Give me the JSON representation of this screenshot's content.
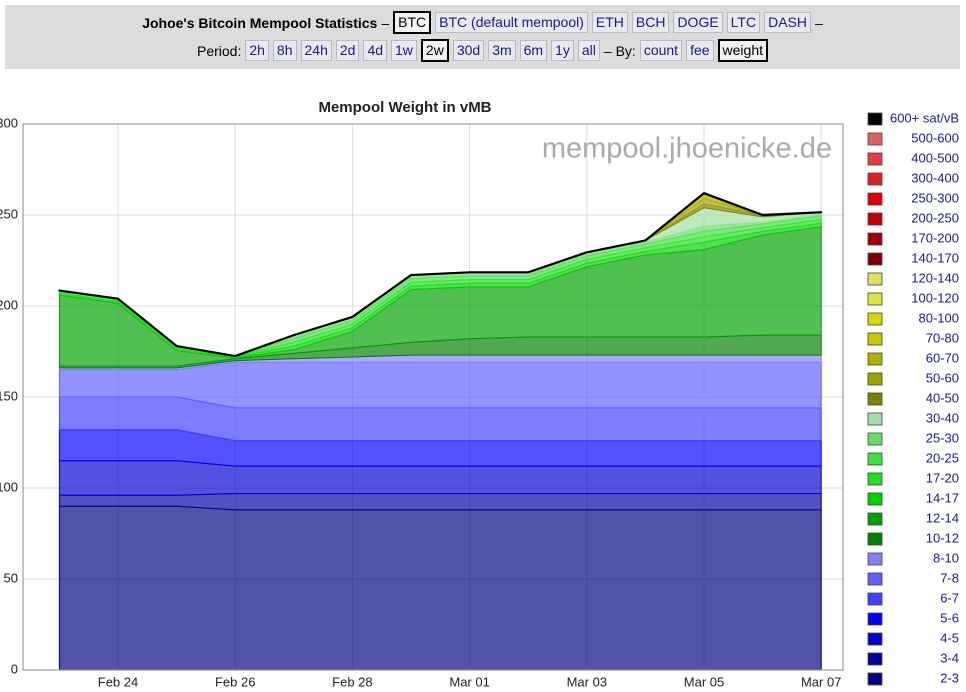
{
  "header": {
    "title": "Johoe's Bitcoin Mempool Statistics",
    "sep": "–",
    "coins": [
      "BTC",
      "BTC (default mempool)",
      "ETH",
      "BCH",
      "DOGE",
      "LTC",
      "DASH"
    ],
    "coin_selected": "BTC",
    "period_label": "Period:",
    "periods": [
      "2h",
      "8h",
      "24h",
      "2d",
      "4d",
      "1w",
      "2w",
      "30d",
      "3m",
      "6m",
      "1y",
      "all"
    ],
    "period_selected": "2w",
    "by_label": "– By:",
    "modes": [
      "count",
      "fee",
      "weight"
    ],
    "mode_selected": "weight"
  },
  "chart_data": {
    "type": "stacked_area",
    "title": "Mempool Weight in vMB",
    "watermark": "mempool.jhoenicke.de",
    "categories": [
      null,
      "Feb 24",
      null,
      "Feb 26",
      null,
      "Feb 28",
      null,
      "Mar 01",
      null,
      "Mar 03",
      null,
      "Mar 05",
      null,
      "Mar 07"
    ],
    "ylim": [
      0,
      300
    ],
    "yticks": [
      0,
      50,
      100,
      150,
      200,
      250,
      300
    ],
    "grid": true,
    "legend": "right",
    "series": [
      {
        "name": "600+ sat/vB",
        "color": "#000000",
        "values": [
          0,
          0,
          0,
          0,
          0,
          0,
          0,
          0,
          0,
          0,
          0,
          0,
          0,
          0
        ]
      },
      {
        "name": "500-600",
        "color": "#e06060",
        "values": [
          0,
          0,
          0,
          0,
          0,
          0,
          0,
          0,
          0,
          0,
          0,
          0,
          0,
          0
        ]
      },
      {
        "name": "400-500",
        "color": "#e04040",
        "values": [
          0,
          0,
          0,
          0,
          0,
          0,
          0,
          0,
          0,
          0,
          0,
          0,
          0,
          0
        ]
      },
      {
        "name": "300-400",
        "color": "#e02020",
        "values": [
          0,
          0,
          0,
          0,
          0,
          0,
          0,
          0,
          0,
          0,
          0,
          0,
          0,
          0
        ]
      },
      {
        "name": "250-300",
        "color": "#e00000",
        "values": [
          0,
          0,
          0,
          0,
          0,
          0,
          0,
          0,
          0,
          0,
          0,
          0,
          0,
          0
        ]
      },
      {
        "name": "200-250",
        "color": "#c00000",
        "values": [
          0,
          0,
          0,
          0,
          0,
          0,
          0,
          0,
          0,
          0,
          0,
          0,
          0,
          0
        ]
      },
      {
        "name": "170-200",
        "color": "#a00000",
        "values": [
          0,
          0,
          0,
          0,
          0,
          0,
          0,
          0,
          0,
          0,
          0,
          0,
          0,
          0
        ]
      },
      {
        "name": "140-170",
        "color": "#800000",
        "values": [
          0,
          0,
          0,
          0,
          0,
          0,
          0,
          0,
          0,
          0,
          0,
          0,
          0,
          0
        ]
      },
      {
        "name": "120-140",
        "color": "#e0e060",
        "values": [
          0,
          0,
          0,
          0,
          0,
          0,
          0,
          0,
          0,
          0,
          0,
          0,
          0,
          0
        ]
      },
      {
        "name": "100-120",
        "color": "#e0e040",
        "values": [
          0,
          0,
          0,
          0,
          0,
          0,
          0,
          0,
          0,
          0,
          0,
          0,
          0,
          0
        ]
      },
      {
        "name": "80-100",
        "color": "#d8d800",
        "values": [
          0,
          0,
          0,
          0,
          0,
          0,
          0,
          0,
          0,
          0,
          0,
          0,
          0,
          0
        ]
      },
      {
        "name": "70-80",
        "color": "#c8c800",
        "values": [
          0,
          0,
          0,
          0,
          0,
          0,
          0,
          0,
          0,
          0,
          0,
          1,
          0,
          0
        ]
      },
      {
        "name": "60-70",
        "color": "#b0b000",
        "values": [
          0,
          0,
          0,
          0,
          0,
          0,
          0,
          0,
          0,
          0,
          0,
          2,
          0,
          0
        ]
      },
      {
        "name": "50-60",
        "color": "#a0a000",
        "values": [
          0,
          0,
          0,
          0,
          0,
          0,
          0,
          0,
          0,
          0,
          0,
          3,
          0,
          0
        ]
      },
      {
        "name": "40-50",
        "color": "#808000",
        "values": [
          0,
          0,
          0,
          0,
          0,
          0,
          0,
          0,
          0,
          0,
          0,
          2,
          1,
          0
        ]
      },
      {
        "name": "30-40",
        "color": "#a0e0a0",
        "values": [
          0,
          0,
          0,
          0,
          1,
          1,
          1,
          1,
          1,
          1,
          1,
          10,
          3,
          1
        ]
      },
      {
        "name": "25-30",
        "color": "#60e060",
        "values": [
          0,
          0,
          0,
          0,
          1,
          1,
          1,
          1,
          1,
          1,
          1,
          3,
          1,
          1
        ]
      },
      {
        "name": "20-25",
        "color": "#40e040",
        "values": [
          0.5,
          0.5,
          0.5,
          0,
          2,
          2,
          2,
          2,
          2,
          2,
          2,
          3,
          2,
          2
        ]
      },
      {
        "name": "17-20",
        "color": "#20e020",
        "values": [
          1,
          1,
          1,
          0.5,
          2,
          2,
          2,
          2,
          2,
          2,
          2,
          3,
          2,
          2
        ]
      },
      {
        "name": "14-17",
        "color": "#00d000",
        "values": [
          1,
          1,
          1,
          0.5,
          2,
          2,
          2,
          2,
          2,
          2,
          2,
          4,
          2,
          2
        ]
      },
      {
        "name": "12-14",
        "color": "#00a000",
        "values": [
          39,
          34.5,
          8.5,
          0.5,
          2,
          9,
          29,
          28.5,
          27.5,
          38.5,
          45,
          48,
          55,
          59.5
        ]
      },
      {
        "name": "10-12",
        "color": "#008000",
        "values": [
          1,
          1,
          1,
          1,
          3,
          5,
          7,
          9,
          10,
          10,
          10,
          10,
          11,
          11
        ]
      },
      {
        "name": "8-10",
        "color": "#8080ff",
        "values": [
          1,
          1,
          1,
          1,
          2,
          3,
          4,
          4,
          4,
          4,
          4,
          4,
          4,
          4
        ]
      },
      {
        "name": "7-8",
        "color": "#6060ff",
        "values": [
          15,
          15,
          15,
          25,
          25,
          25,
          25,
          25,
          25,
          25,
          25,
          25,
          25,
          25
        ]
      },
      {
        "name": "6-7",
        "color": "#4040ff",
        "values": [
          18,
          18,
          18,
          18,
          18,
          18,
          18,
          18,
          18,
          18,
          18,
          18,
          18,
          18
        ]
      },
      {
        "name": "5-6",
        "color": "#0000ff",
        "values": [
          17,
          17,
          17,
          14,
          14,
          14,
          14,
          14,
          14,
          14,
          14,
          14,
          14,
          14
        ]
      },
      {
        "name": "4-5",
        "color": "#0000d0",
        "values": [
          19,
          19,
          19,
          15,
          15,
          15,
          15,
          15,
          15,
          15,
          15,
          15,
          15,
          15
        ]
      },
      {
        "name": "3-4",
        "color": "#0000a0",
        "values": [
          6,
          6,
          6,
          9,
          9,
          9,
          9,
          9,
          9,
          9,
          9,
          9,
          9,
          9
        ]
      },
      {
        "name": "2-3",
        "color": "#000080",
        "values": [
          90,
          90,
          90,
          88,
          88,
          88,
          88,
          88,
          88,
          88,
          88,
          88,
          88,
          88
        ]
      }
    ]
  }
}
